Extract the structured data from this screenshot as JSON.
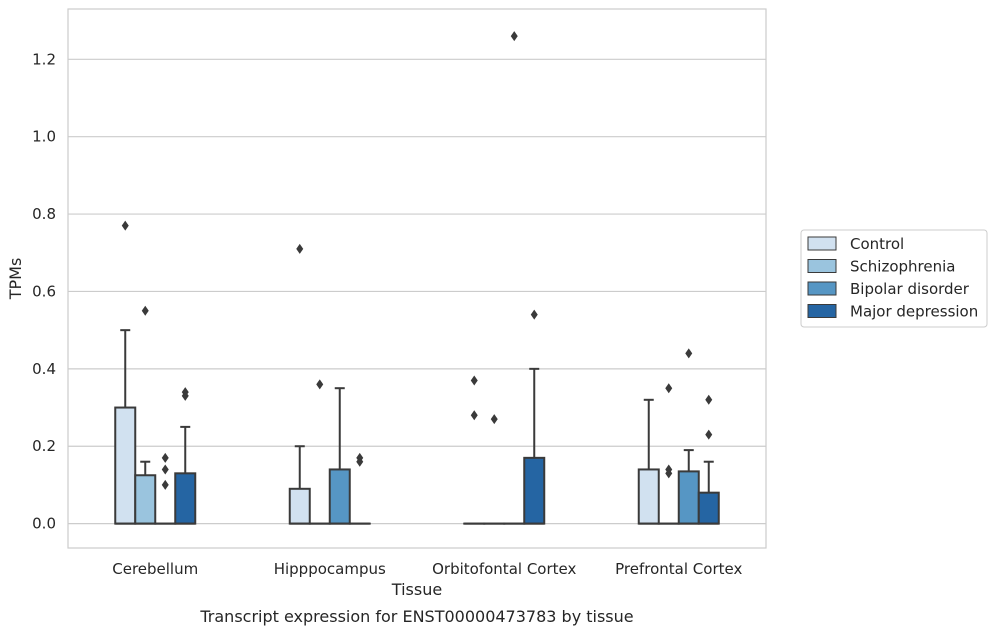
{
  "caption": "Transcript expression for ENST00000473783 by tissue",
  "chart_data": {
    "type": "box",
    "xlabel": "Tissue",
    "ylabel": "TPMs",
    "ylim": [
      -0.063,
      1.33
    ],
    "yticks": [
      0.0,
      0.2,
      0.4,
      0.6,
      0.8,
      1.0,
      1.2
    ],
    "ytick_labels": [
      "0.0",
      "0.2",
      "0.4",
      "0.6",
      "0.8",
      "1.0",
      "1.2"
    ],
    "grid": "horizontal",
    "legend_position": "right",
    "categories": [
      "Cerebellum",
      "Hipppocampus",
      "Orbitofontal Cortex",
      "Prefrontal Cortex"
    ],
    "series": [
      {
        "name": "Control",
        "color": "#d1e1f0",
        "boxes": [
          {
            "q1": 0.0,
            "median": 0.0,
            "q3": 0.3,
            "whisker_low": 0.0,
            "whisker_high": 0.5,
            "outliers": [
              0.77
            ]
          },
          {
            "q1": 0.0,
            "median": 0.0,
            "q3": 0.09,
            "whisker_low": 0.0,
            "whisker_high": 0.2,
            "outliers": [
              0.71
            ]
          },
          {
            "q1": 0.0,
            "median": 0.0,
            "q3": 0.0,
            "whisker_low": 0.0,
            "whisker_high": 0.0,
            "outliers": [
              0.28,
              0.37
            ]
          },
          {
            "q1": 0.0,
            "median": 0.0,
            "q3": 0.14,
            "whisker_low": 0.0,
            "whisker_high": 0.32,
            "outliers": []
          }
        ]
      },
      {
        "name": "Schizophrenia",
        "color": "#9ac4de",
        "boxes": [
          {
            "q1": 0.0,
            "median": 0.0,
            "q3": 0.125,
            "whisker_low": 0.0,
            "whisker_high": 0.16,
            "outliers": [
              0.55
            ]
          },
          {
            "q1": 0.0,
            "median": 0.0,
            "q3": 0.0,
            "whisker_low": 0.0,
            "whisker_high": 0.0,
            "outliers": [
              0.36
            ]
          },
          {
            "q1": 0.0,
            "median": 0.0,
            "q3": 0.0,
            "whisker_low": 0.0,
            "whisker_high": 0.0,
            "outliers": [
              0.27
            ]
          },
          {
            "q1": 0.0,
            "median": 0.0,
            "q3": 0.0,
            "whisker_low": 0.0,
            "whisker_high": 0.0,
            "outliers": [
              0.13,
              0.14,
              0.35
            ]
          }
        ]
      },
      {
        "name": "Bipolar disorder",
        "color": "#5696c4",
        "boxes": [
          {
            "q1": 0.0,
            "median": 0.0,
            "q3": 0.0,
            "whisker_low": 0.0,
            "whisker_high": 0.0,
            "outliers": [
              0.1,
              0.14,
              0.17
            ]
          },
          {
            "q1": 0.0,
            "median": 0.0,
            "q3": 0.14,
            "whisker_low": 0.0,
            "whisker_high": 0.35,
            "outliers": []
          },
          {
            "q1": 0.0,
            "median": 0.0,
            "q3": 0.0,
            "whisker_low": 0.0,
            "whisker_high": 0.0,
            "outliers": [
              1.26
            ]
          },
          {
            "q1": 0.0,
            "median": 0.0,
            "q3": 0.135,
            "whisker_low": 0.0,
            "whisker_high": 0.19,
            "outliers": [
              0.44
            ]
          }
        ]
      },
      {
        "name": "Major depression",
        "color": "#2565a3",
        "boxes": [
          {
            "q1": 0.0,
            "median": 0.0,
            "q3": 0.13,
            "whisker_low": 0.0,
            "whisker_high": 0.25,
            "outliers": [
              0.33,
              0.34
            ]
          },
          {
            "q1": 0.0,
            "median": 0.0,
            "q3": 0.0,
            "whisker_low": 0.0,
            "whisker_high": 0.0,
            "outliers": [
              0.16,
              0.17
            ]
          },
          {
            "q1": 0.0,
            "median": 0.0,
            "q3": 0.17,
            "whisker_low": 0.0,
            "whisker_high": 0.4,
            "outliers": [
              0.54
            ]
          },
          {
            "q1": 0.0,
            "median": 0.0,
            "q3": 0.08,
            "whisker_low": 0.0,
            "whisker_high": 0.16,
            "outliers": [
              0.23,
              0.32
            ]
          }
        ]
      }
    ]
  }
}
